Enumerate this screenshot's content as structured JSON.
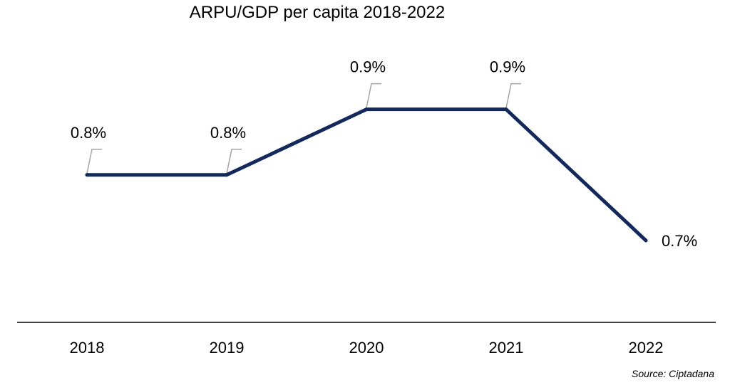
{
  "chart_data": {
    "type": "line",
    "title": "ARPU/GDP per capita 2018-2022",
    "categories": [
      "2018",
      "2019",
      "2020",
      "2021",
      "2022"
    ],
    "series": [
      {
        "values": [
          0.8,
          0.8,
          0.9,
          0.9,
          0.7
        ],
        "labels": [
          "0.8%",
          "0.8%",
          "0.9%",
          "0.9%",
          "0.7%"
        ]
      }
    ],
    "xlabel": "",
    "ylabel": "",
    "ylim": [
      0.6,
      0.98
    ],
    "grid": false,
    "legend": "none",
    "line_color": "#13295B",
    "leader_color": "#A6A6A6",
    "axis_color": "#000000",
    "source": "Source: Ciptadana"
  }
}
